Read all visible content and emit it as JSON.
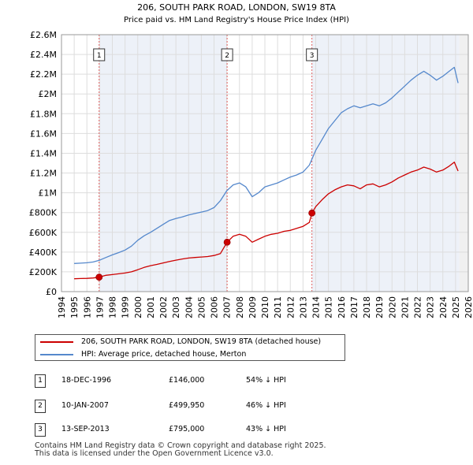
{
  "chart_data": {
    "type": "line",
    "title": "206, SOUTH PARK ROAD, LONDON, SW19 8TA",
    "subtitle": "Price paid vs. HM Land Registry's House Price Index (HPI)",
    "xlabel": "",
    "ylabel": "",
    "xlim": [
      1994,
      2026
    ],
    "ylim": [
      0,
      2600000
    ],
    "y_ticks": [
      0,
      200000,
      400000,
      600000,
      800000,
      1000000,
      1200000,
      1400000,
      1600000,
      1800000,
      2000000,
      2200000,
      2400000,
      2600000
    ],
    "y_tick_labels": [
      "£0",
      "£200K",
      "£400K",
      "£600K",
      "£800K",
      "£1M",
      "£1.2M",
      "£1.4M",
      "£1.6M",
      "£1.8M",
      "£2M",
      "£2.2M",
      "£2.4M",
      "£2.6M"
    ],
    "x_ticks": [
      1994,
      1995,
      1996,
      1997,
      1998,
      1999,
      2000,
      2001,
      2002,
      2003,
      2004,
      2005,
      2006,
      2007,
      2008,
      2009,
      2010,
      2011,
      2012,
      2013,
      2014,
      2015,
      2016,
      2017,
      2018,
      2019,
      2020,
      2021,
      2022,
      2023,
      2024,
      2025,
      2026
    ],
    "x_tick_labels": [
      "1994",
      "1995",
      "1996",
      "1997",
      "1998",
      "1999",
      "2000",
      "2001",
      "2002",
      "2003",
      "2004",
      "2005",
      "2006",
      "2007",
      "2008",
      "2009",
      "2010",
      "2011",
      "2012",
      "2013",
      "2014",
      "2015",
      "2016",
      "2017",
      "2018",
      "2019",
      "2020",
      "2021",
      "2022",
      "2023",
      "2024",
      "2025",
      "2026"
    ],
    "data_end_year": 2025.3,
    "series": [
      {
        "name": "206, SOUTH PARK ROAD, LONDON, SW19 8TA (detached house)",
        "color": "#cc0000",
        "x": [
          1995.0,
          1995.5,
          1996.0,
          1996.5,
          1996.96,
          1997.5,
          1998.0,
          1998.5,
          1999.0,
          1999.5,
          2000.0,
          2000.5,
          2001.0,
          2001.5,
          2002.0,
          2002.5,
          2003.0,
          2003.5,
          2004.0,
          2004.5,
          2005.0,
          2005.5,
          2006.0,
          2006.5,
          2007.03,
          2007.5,
          2008.0,
          2008.5,
          2009.0,
          2009.5,
          2010.0,
          2010.5,
          2011.0,
          2011.5,
          2012.0,
          2012.5,
          2013.0,
          2013.5,
          2013.7,
          2014.0,
          2014.5,
          2015.0,
          2015.5,
          2016.0,
          2016.5,
          2017.0,
          2017.5,
          2018.0,
          2018.5,
          2019.0,
          2019.5,
          2020.0,
          2020.5,
          2021.0,
          2021.5,
          2022.0,
          2022.5,
          2023.0,
          2023.5,
          2024.0,
          2024.5,
          2024.9,
          2025.2
        ],
        "values": [
          130000,
          132000,
          134000,
          138000,
          146000,
          165000,
          172000,
          180000,
          188000,
          200000,
          222000,
          245000,
          262000,
          275000,
          290000,
          305000,
          318000,
          330000,
          340000,
          345000,
          350000,
          355000,
          365000,
          385000,
          499950,
          560000,
          580000,
          560000,
          500000,
          530000,
          560000,
          580000,
          590000,
          610000,
          620000,
          640000,
          660000,
          700000,
          795000,
          860000,
          930000,
          990000,
          1030000,
          1060000,
          1080000,
          1070000,
          1040000,
          1080000,
          1090000,
          1060000,
          1080000,
          1110000,
          1150000,
          1180000,
          1210000,
          1230000,
          1260000,
          1240000,
          1210000,
          1230000,
          1270000,
          1310000,
          1220000
        ]
      },
      {
        "name": "HPI: Average price, detached house, Merton",
        "color": "#5588cc",
        "x": [
          1995.0,
          1995.5,
          1996.0,
          1996.5,
          1997.0,
          1997.5,
          1998.0,
          1998.5,
          1999.0,
          1999.5,
          2000.0,
          2000.5,
          2001.0,
          2001.5,
          2002.0,
          2002.5,
          2003.0,
          2003.5,
          2004.0,
          2004.5,
          2005.0,
          2005.5,
          2006.0,
          2006.5,
          2007.0,
          2007.5,
          2008.0,
          2008.5,
          2009.0,
          2009.5,
          2010.0,
          2010.5,
          2011.0,
          2011.5,
          2012.0,
          2012.5,
          2013.0,
          2013.5,
          2014.0,
          2014.5,
          2015.0,
          2015.5,
          2016.0,
          2016.5,
          2017.0,
          2017.5,
          2018.0,
          2018.5,
          2019.0,
          2019.5,
          2020.0,
          2020.5,
          2021.0,
          2021.5,
          2022.0,
          2022.5,
          2023.0,
          2023.5,
          2024.0,
          2024.5,
          2024.9,
          2025.2
        ],
        "values": [
          285000,
          288000,
          292000,
          300000,
          318000,
          345000,
          372000,
          395000,
          420000,
          460000,
          520000,
          565000,
          600000,
          640000,
          680000,
          720000,
          740000,
          755000,
          775000,
          790000,
          805000,
          820000,
          850000,
          920000,
          1020000,
          1080000,
          1100000,
          1060000,
          960000,
          1000000,
          1060000,
          1080000,
          1100000,
          1130000,
          1160000,
          1180000,
          1210000,
          1280000,
          1430000,
          1540000,
          1650000,
          1730000,
          1810000,
          1850000,
          1880000,
          1860000,
          1880000,
          1900000,
          1880000,
          1910000,
          1960000,
          2020000,
          2080000,
          2140000,
          2190000,
          2230000,
          2190000,
          2140000,
          2180000,
          2230000,
          2270000,
          2110000
        ]
      }
    ],
    "sales": [
      {
        "num": "1",
        "x": 1996.96,
        "value": 146000
      },
      {
        "num": "2",
        "x": 2007.03,
        "value": 499950
      },
      {
        "num": "3",
        "x": 2013.7,
        "value": 795000
      }
    ]
  },
  "legend": {
    "property_label": "206, SOUTH PARK ROAD, LONDON, SW19 8TA (detached house)",
    "hpi_label": "HPI: Average price, detached house, Merton"
  },
  "transactions": [
    {
      "num": "1",
      "date": "18-DEC-1996",
      "price": "£146,000",
      "hpi": "54% ↓ HPI"
    },
    {
      "num": "2",
      "date": "10-JAN-2007",
      "price": "£499,950",
      "hpi": "46% ↓ HPI"
    },
    {
      "num": "3",
      "date": "13-SEP-2013",
      "price": "£795,000",
      "hpi": "43% ↓ HPI"
    }
  ],
  "footer": {
    "line1": "Contains HM Land Registry data © Crown copyright and database right 2025.",
    "line2": "This data is licensed under the Open Government Licence v3.0."
  },
  "colors": {
    "property": "#cc0000",
    "hpi": "#5588cc",
    "vline": "#e06060",
    "grid": "#dddddd",
    "shade": "#dfe6f3",
    "future": "#cccccc"
  }
}
